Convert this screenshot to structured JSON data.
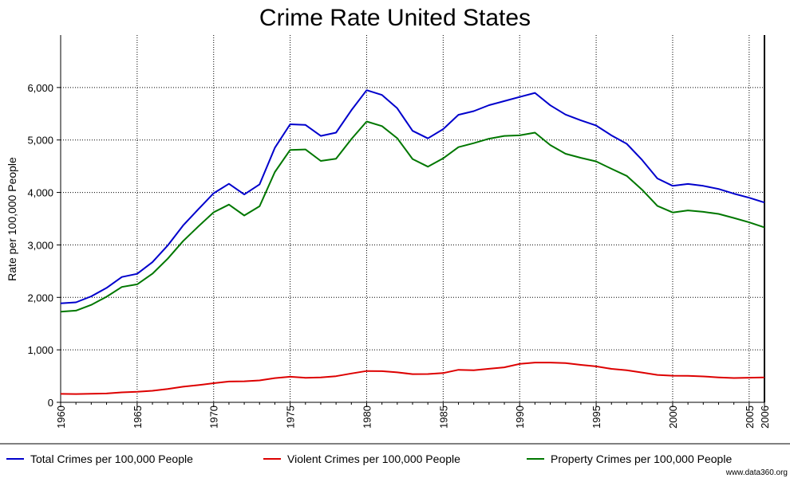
{
  "credit": "www.data360.org",
  "chart_data": {
    "type": "line",
    "title": "Crime Rate United States",
    "xlabel": "",
    "ylabel": "Rate per 100,000 People",
    "xlim": [
      1960,
      2006
    ],
    "ylim": [
      0,
      7000
    ],
    "yticks": [
      0,
      1000,
      2000,
      3000,
      4000,
      5000,
      6000
    ],
    "ytick_labels": [
      "0",
      "1,000",
      "2,000",
      "3,000",
      "4,000",
      "5,000",
      "6,000"
    ],
    "xticks": [
      1960,
      1965,
      1970,
      1975,
      1980,
      1985,
      1990,
      1995,
      2000,
      2005,
      2006
    ],
    "xtick_labels": [
      "1960",
      "1965",
      "1970",
      "1975",
      "1980",
      "1985",
      "1990",
      "1995",
      "2000",
      "2005",
      "2006"
    ],
    "grid": true,
    "legend_position": "bottom",
    "x": [
      1960,
      1961,
      1962,
      1963,
      1964,
      1965,
      1966,
      1967,
      1968,
      1969,
      1970,
      1971,
      1972,
      1973,
      1974,
      1975,
      1976,
      1977,
      1978,
      1979,
      1980,
      1981,
      1982,
      1983,
      1984,
      1985,
      1986,
      1987,
      1988,
      1989,
      1990,
      1991,
      1992,
      1993,
      1994,
      1995,
      1996,
      1997,
      1998,
      1999,
      2000,
      2001,
      2002,
      2003,
      2004,
      2005,
      2006
    ],
    "series": [
      {
        "name": "Total Crimes per 100,000 People",
        "color": "#0000cc",
        "values": [
          1887,
          1906,
          2020,
          2180,
          2388,
          2449,
          2671,
          2990,
          3370,
          3680,
          3985,
          4165,
          3961,
          4154,
          4850,
          5299,
          5287,
          5078,
          5140,
          5566,
          5950,
          5858,
          5604,
          5175,
          5031,
          5207,
          5480,
          5550,
          5664,
          5741,
          5820,
          5898,
          5661,
          5484,
          5374,
          5275,
          5087,
          4927,
          4620,
          4267,
          4125,
          4162,
          4125,
          4067,
          3977,
          3900,
          3808
        ]
      },
      {
        "name": "Violent Crimes per 100,000 People",
        "color": "#dd0000",
        "values": [
          161,
          158,
          162,
          168,
          190,
          200,
          220,
          253,
          298,
          328,
          364,
          396,
          401,
          417,
          461,
          487,
          468,
          475,
          498,
          549,
          597,
          594,
          571,
          538,
          539,
          557,
          620,
          610,
          640,
          666,
          732,
          758,
          758,
          747,
          714,
          685,
          637,
          611,
          568,
          523,
          507,
          504,
          494,
          476,
          463,
          469,
          474
        ]
      },
      {
        "name": "Property Crimes per 100,000 People",
        "color": "#007700",
        "values": [
          1726,
          1748,
          1857,
          2012,
          2198,
          2249,
          2451,
          2737,
          3072,
          3352,
          3621,
          3769,
          3560,
          3737,
          4389,
          4811,
          4819,
          4601,
          4642,
          5017,
          5353,
          5264,
          5033,
          4637,
          4492,
          4650,
          4863,
          4940,
          5024,
          5077,
          5088,
          5140,
          4903,
          4738,
          4660,
          4591,
          4450,
          4316,
          4052,
          3744,
          3618,
          3658,
          3631,
          3591,
          3514,
          3430,
          3334
        ]
      }
    ]
  }
}
